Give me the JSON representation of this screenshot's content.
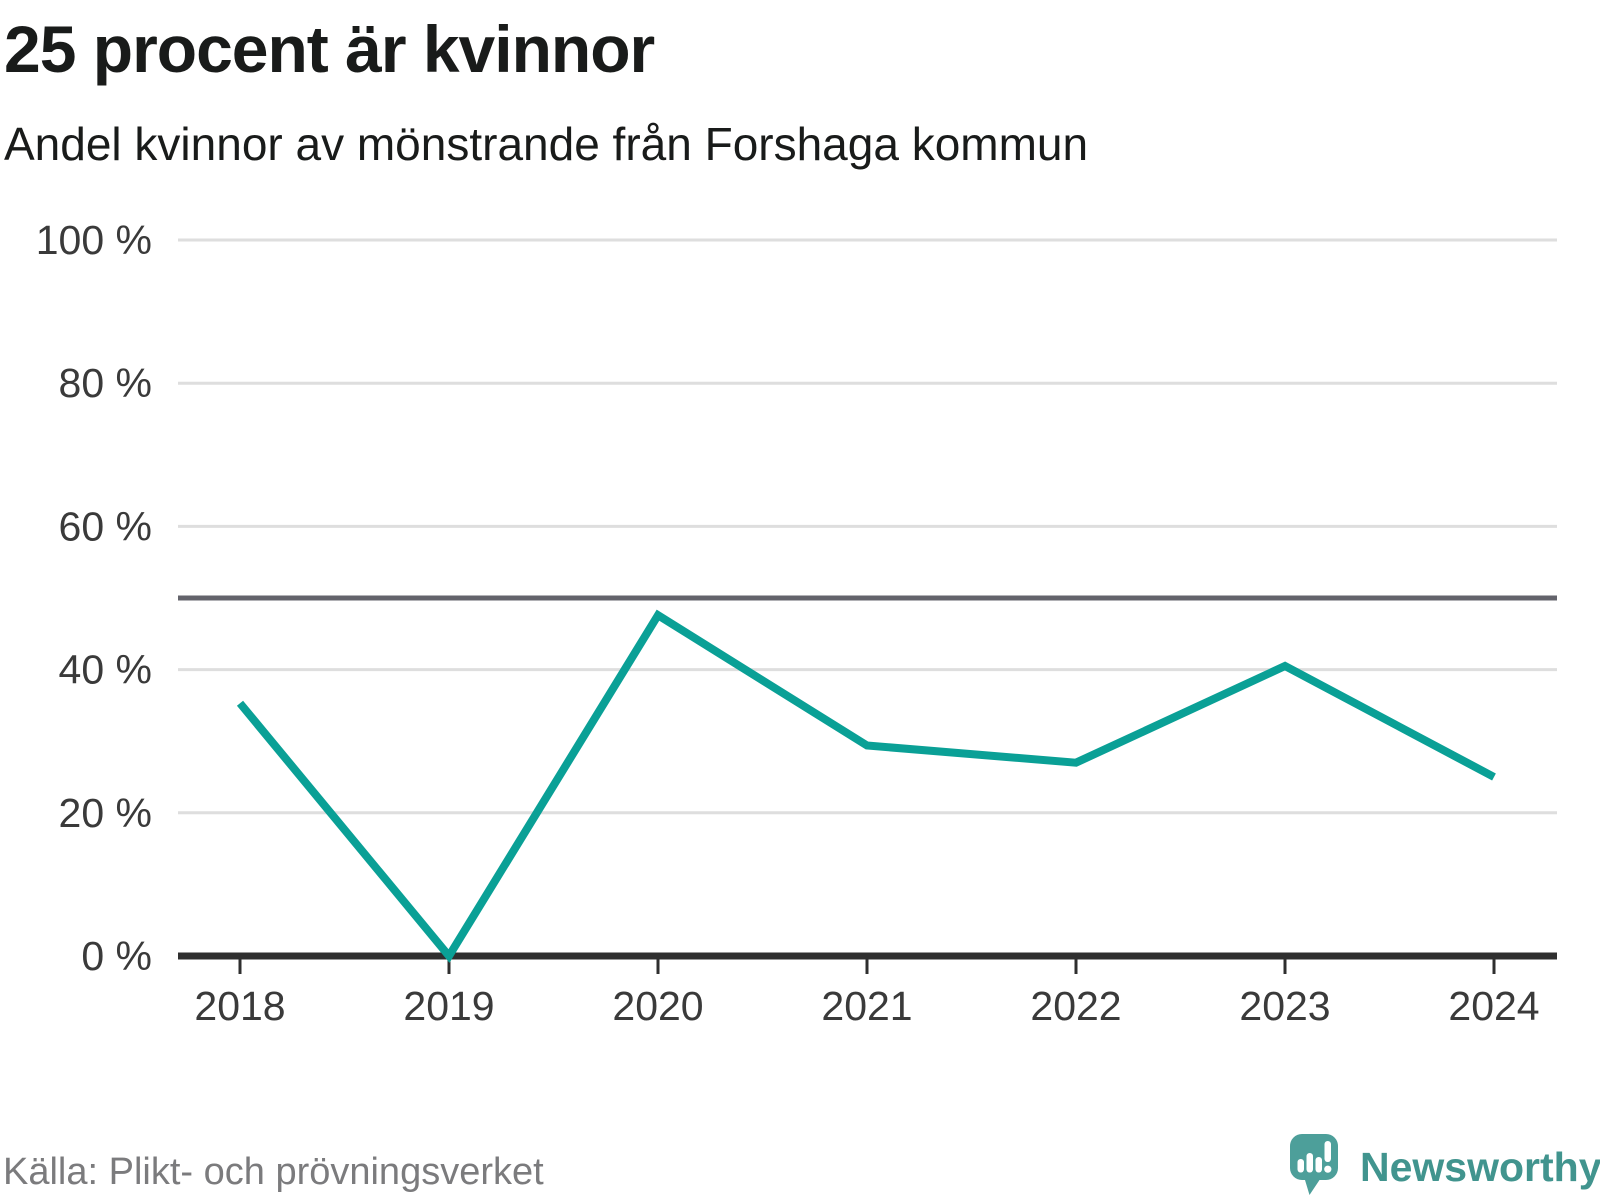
{
  "header": {
    "title": "25 procent är kvinnor",
    "subtitle": "Andel kvinnor av mönstrande från Forshaga kommun"
  },
  "footer": {
    "source": "Källa: Plikt- och prövningsverket",
    "brand": "Newsworthy"
  },
  "colors": {
    "line": "#0aa096",
    "reference_line": "#63636b",
    "grid": "#dedede",
    "axis": "#2f2f2f",
    "tick_label": "#3a3a3a",
    "title_text": "#191b1a",
    "source_text": "#7b7b7d",
    "brand_text": "#41948e",
    "brand_icon": "#4d9f9a"
  },
  "chart_data": {
    "type": "line",
    "title": "25 procent är kvinnor",
    "subtitle": "Andel kvinnor av mönstrande från Forshaga kommun",
    "x": [
      "2018",
      "2019",
      "2020",
      "2021",
      "2022",
      "2023",
      "2024"
    ],
    "series": [
      {
        "name": "Andel kvinnor av mönstrande",
        "values": [
          35.3,
          0,
          47.6,
          29.4,
          27,
          40.5,
          25
        ]
      }
    ],
    "ylim": [
      0,
      100
    ],
    "yticks": [
      0,
      20,
      40,
      60,
      80,
      100
    ],
    "ytick_labels": [
      "0 %",
      "20 %",
      "40 %",
      "60 %",
      "80 %",
      "100 %"
    ],
    "reference_line": 50,
    "xlabel": "",
    "ylabel": "",
    "legend": "none",
    "grid": "horizontal"
  }
}
